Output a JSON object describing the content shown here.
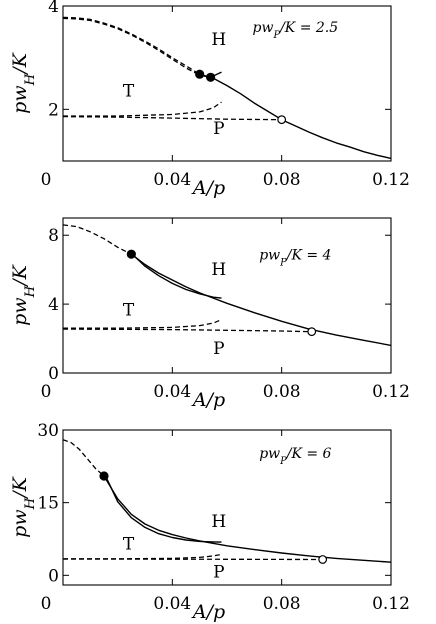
{
  "chart_data": [
    {
      "type": "line",
      "xlabel": "A/p",
      "ylabel": "pw_H/K",
      "xlim": [
        0,
        0.12
      ],
      "ylim": [
        1,
        4
      ],
      "xticks": [
        0,
        0.04,
        0.08,
        0.12
      ],
      "xtick_labels": [
        "0",
        "0.04",
        "0.08",
        "0.12"
      ],
      "yticks": [
        2,
        4
      ],
      "ytick_labels": [
        "2",
        "4"
      ],
      "annotation": "pw_P/K = 2.5",
      "regions": [
        "H",
        "T",
        "P"
      ],
      "series": [
        {
          "style": "solid",
          "x": [
            0.05,
            0.055,
            0.06,
            0.065,
            0.07,
            0.075,
            0.08,
            0.085,
            0.09,
            0.095,
            0.1,
            0.105,
            0.11,
            0.115,
            0.12
          ],
          "y": [
            2.68,
            2.6,
            2.46,
            2.3,
            2.12,
            1.96,
            1.8,
            1.68,
            1.56,
            1.45,
            1.35,
            1.27,
            1.18,
            1.11,
            1.05
          ]
        },
        {
          "style": "solid",
          "x": [
            0.054,
            0.058
          ],
          "y": [
            2.62,
            2.72
          ]
        },
        {
          "style": "dashed",
          "x": [
            0,
            0.005,
            0.01,
            0.015,
            0.02,
            0.025,
            0.03,
            0.035,
            0.04,
            0.045,
            0.05
          ],
          "y": [
            3.78,
            3.77,
            3.74,
            3.67,
            3.58,
            3.46,
            3.32,
            3.17,
            3.0,
            2.84,
            2.68
          ]
        },
        {
          "style": "dashed",
          "x": [
            0,
            0.005,
            0.01,
            0.015,
            0.02,
            0.025,
            0.03,
            0.035,
            0.04,
            0.045,
            0.05,
            0.054
          ],
          "y": [
            3.76,
            3.75,
            3.72,
            3.65,
            3.56,
            3.44,
            3.3,
            3.14,
            2.97,
            2.8,
            2.66,
            2.62
          ]
        },
        {
          "style": "dashed",
          "x": [
            0,
            0.02,
            0.04,
            0.05,
            0.055,
            0.058
          ],
          "y": [
            1.87,
            1.87,
            1.9,
            1.95,
            2.03,
            2.14
          ]
        },
        {
          "style": "dashed",
          "x": [
            0,
            0.02,
            0.04,
            0.06,
            0.08
          ],
          "y": [
            1.86,
            1.85,
            1.83,
            1.81,
            1.8
          ]
        }
      ],
      "points": [
        {
          "x": 0.05,
          "y": 2.68,
          "fill": "filled"
        },
        {
          "x": 0.054,
          "y": 2.62,
          "fill": "filled"
        },
        {
          "x": 0.08,
          "y": 1.8,
          "fill": "open"
        }
      ]
    },
    {
      "type": "line",
      "xlabel": "A/p",
      "ylabel": "pw_H/K",
      "xlim": [
        0,
        0.12
      ],
      "ylim": [
        0,
        9
      ],
      "xticks": [
        0,
        0.04,
        0.08,
        0.12
      ],
      "xtick_labels": [
        "0",
        "0.04",
        "0.08",
        "0.12"
      ],
      "yticks": [
        0,
        4,
        8
      ],
      "ytick_labels": [
        "0",
        "4",
        "8"
      ],
      "annotation": "pw_P/K = 4",
      "regions": [
        "H",
        "T",
        "P"
      ],
      "series": [
        {
          "style": "dashed",
          "x": [
            0,
            0.005,
            0.01,
            0.015,
            0.02,
            0.025
          ],
          "y": [
            8.6,
            8.5,
            8.2,
            7.8,
            7.3,
            6.9
          ]
        },
        {
          "style": "solid",
          "x": [
            0.025,
            0.03,
            0.035,
            0.04,
            0.045,
            0.05,
            0.055,
            0.06,
            0.07,
            0.08,
            0.09,
            0.1,
            0.11,
            0.12
          ],
          "y": [
            6.9,
            6.3,
            5.8,
            5.4,
            5.0,
            4.65,
            4.35,
            4.05,
            3.5,
            3.0,
            2.55,
            2.2,
            1.9,
            1.6
          ]
        },
        {
          "style": "solid",
          "x": [
            0.026,
            0.03,
            0.035,
            0.04,
            0.045,
            0.05,
            0.055,
            0.058
          ],
          "y": [
            6.8,
            6.2,
            5.65,
            5.2,
            4.85,
            4.6,
            4.4,
            4.35
          ]
        },
        {
          "style": "dashed",
          "x": [
            0,
            0.02,
            0.04,
            0.05,
            0.055,
            0.058
          ],
          "y": [
            2.6,
            2.6,
            2.65,
            2.75,
            2.9,
            3.1
          ]
        },
        {
          "style": "dashed",
          "x": [
            0,
            0.02,
            0.04,
            0.06,
            0.08,
            0.091
          ],
          "y": [
            2.55,
            2.54,
            2.52,
            2.48,
            2.44,
            2.4
          ]
        }
      ],
      "points": [
        {
          "x": 0.025,
          "y": 6.9,
          "fill": "filled"
        },
        {
          "x": 0.091,
          "y": 2.4,
          "fill": "open"
        }
      ]
    },
    {
      "type": "line",
      "xlabel": "A/p",
      "ylabel": "pw_H/K",
      "xlim": [
        0,
        0.12
      ],
      "ylim": [
        -2,
        30
      ],
      "xticks": [
        0,
        0.04,
        0.08,
        0.12
      ],
      "xtick_labels": [
        "0",
        "0.04",
        "0.08",
        "0.12"
      ],
      "yticks": [
        0,
        15,
        30
      ],
      "ytick_labels": [
        "0",
        "15",
        "30"
      ],
      "annotation": "pw_P/K = 6",
      "regions": [
        "H",
        "T",
        "P"
      ],
      "series": [
        {
          "style": "dashed",
          "x": [
            0,
            0.003,
            0.006,
            0.009,
            0.012,
            0.015
          ],
          "y": [
            28.0,
            27.4,
            26.0,
            24.0,
            22.0,
            20.5
          ]
        },
        {
          "style": "solid",
          "x": [
            0.015,
            0.02,
            0.025,
            0.03,
            0.035,
            0.04,
            0.045,
            0.05,
            0.06,
            0.07,
            0.08,
            0.09,
            0.1,
            0.11,
            0.12
          ],
          "y": [
            20.5,
            15.8,
            12.6,
            10.6,
            9.3,
            8.4,
            7.7,
            7.1,
            6.1,
            5.3,
            4.6,
            4.0,
            3.5,
            3.1,
            2.7
          ]
        },
        {
          "style": "solid",
          "x": [
            0.016,
            0.02,
            0.025,
            0.03,
            0.035,
            0.04,
            0.045,
            0.05,
            0.055,
            0.058
          ],
          "y": [
            20.0,
            15.2,
            11.9,
            9.9,
            8.6,
            7.8,
            7.3,
            7.0,
            6.9,
            6.85
          ]
        },
        {
          "style": "dashed",
          "x": [
            0,
            0.02,
            0.04,
            0.05,
            0.055,
            0.058
          ],
          "y": [
            3.4,
            3.4,
            3.5,
            3.7,
            4.0,
            4.3
          ]
        },
        {
          "style": "dashed",
          "x": [
            0,
            0.02,
            0.04,
            0.06,
            0.08,
            0.095
          ],
          "y": [
            3.35,
            3.34,
            3.33,
            3.31,
            3.29,
            3.27
          ]
        }
      ],
      "points": [
        {
          "x": 0.015,
          "y": 20.5,
          "fill": "filled"
        },
        {
          "x": 0.095,
          "y": 3.27,
          "fill": "open"
        }
      ]
    }
  ]
}
